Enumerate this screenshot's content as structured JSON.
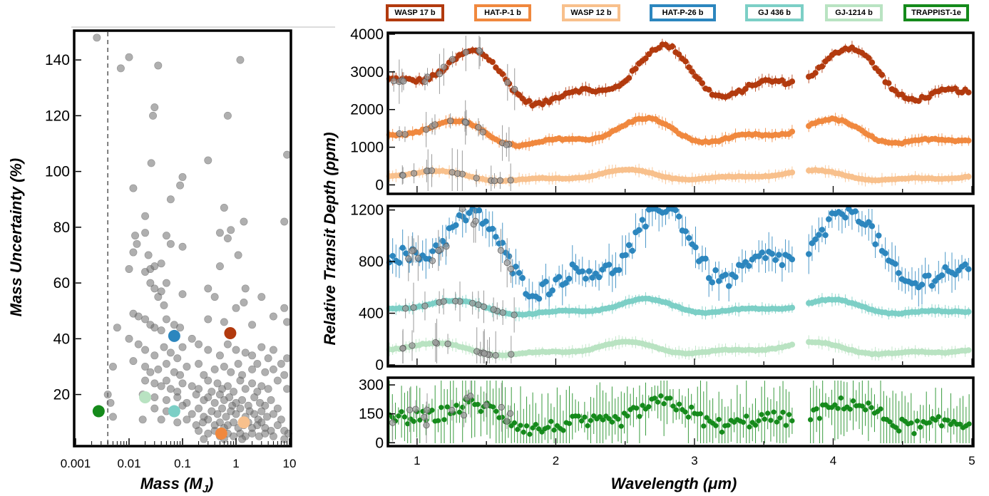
{
  "legend": [
    {
      "label": "WASP 17 b",
      "color": "#b23a0e"
    },
    {
      "label": "HAT-P-1 b",
      "color": "#f0883e"
    },
    {
      "label": "WASP 12 b",
      "color": "#f8c08c"
    },
    {
      "label": "HAT-P-26 b",
      "color": "#2c86be"
    },
    {
      "label": "GJ 436 b",
      "color": "#7ccfc6"
    },
    {
      "label": "GJ-1214 b",
      "color": "#b9e3c2"
    },
    {
      "label": "TRAPPIST-1e",
      "color": "#158a1b"
    }
  ],
  "chart_data": [
    {
      "type": "scatter",
      "xlabel": "Mass (M_J)",
      "ylabel": "Mass Uncertainty (%)",
      "xscale": "log",
      "xlim": [
        0.001,
        10
      ],
      "ylim": [
        2,
        150
      ],
      "xticks": [
        0.001,
        0.01,
        0.1,
        1,
        10
      ],
      "xtick_labels": [
        "0.001",
        "0.01",
        "0.1",
        "1",
        "10"
      ],
      "yticks": [
        20,
        40,
        60,
        80,
        100,
        120,
        140
      ],
      "ytick_labels": [
        "20",
        "40",
        "60",
        "80",
        "100",
        "120",
        "140"
      ],
      "reference_line_x": 0.004,
      "background_points": [
        [
          0.0025,
          148
        ],
        [
          0.007,
          137
        ],
        [
          0.01,
          141
        ],
        [
          0.035,
          138
        ],
        [
          0.028,
          120
        ],
        [
          0.03,
          123
        ],
        [
          0.026,
          103
        ],
        [
          0.7,
          120
        ],
        [
          1.2,
          140
        ],
        [
          0.3,
          104
        ],
        [
          9,
          106
        ],
        [
          0.012,
          94
        ],
        [
          0.1,
          98
        ],
        [
          0.09,
          95
        ],
        [
          0.06,
          90
        ],
        [
          0.02,
          84
        ],
        [
          0.6,
          87
        ],
        [
          1.4,
          82
        ],
        [
          0.013,
          77
        ],
        [
          0.014,
          74
        ],
        [
          0.02,
          78
        ],
        [
          0.05,
          77
        ],
        [
          0.5,
          78
        ],
        [
          0.8,
          79
        ],
        [
          8,
          82
        ],
        [
          0.012,
          71
        ],
        [
          0.023,
          70
        ],
        [
          0.06,
          74
        ],
        [
          0.1,
          73
        ],
        [
          0.7,
          76
        ],
        [
          0.01,
          65
        ],
        [
          0.02,
          64
        ],
        [
          0.025,
          65
        ],
        [
          0.03,
          66
        ],
        [
          0.04,
          67
        ],
        [
          0.05,
          60
        ],
        [
          0.5,
          66
        ],
        [
          1.1,
          70
        ],
        [
          0.025,
          60
        ],
        [
          0.03,
          58
        ],
        [
          0.04,
          57
        ],
        [
          0.035,
          55
        ],
        [
          0.045,
          52
        ],
        [
          0.1,
          56
        ],
        [
          0.3,
          58
        ],
        [
          0.4,
          55
        ],
        [
          1.5,
          58
        ],
        [
          3,
          55
        ],
        [
          0.012,
          49
        ],
        [
          0.015,
          48
        ],
        [
          0.02,
          47
        ],
        [
          0.025,
          45
        ],
        [
          0.03,
          44
        ],
        [
          0.04,
          43
        ],
        [
          0.05,
          47
        ],
        [
          0.07,
          45
        ],
        [
          0.09,
          44
        ],
        [
          0.3,
          47
        ],
        [
          0.6,
          46
        ],
        [
          1,
          51
        ],
        [
          1.4,
          53
        ],
        [
          2,
          45
        ],
        [
          5,
          48
        ],
        [
          8,
          51
        ],
        [
          9,
          46
        ],
        [
          0.006,
          44
        ],
        [
          0.01,
          40
        ],
        [
          0.015,
          38
        ],
        [
          0.02,
          36
        ],
        [
          0.03,
          34
        ],
        [
          0.045,
          37
        ],
        [
          0.06,
          35
        ],
        [
          0.08,
          33
        ],
        [
          0.1,
          37
        ],
        [
          0.15,
          40
        ],
        [
          0.2,
          38
        ],
        [
          0.3,
          36
        ],
        [
          0.5,
          34
        ],
        [
          0.7,
          38
        ],
        [
          1,
          36
        ],
        [
          1.5,
          35
        ],
        [
          2,
          34
        ],
        [
          3,
          37
        ],
        [
          4,
          33
        ],
        [
          5,
          36
        ],
        [
          7,
          31
        ],
        [
          9,
          33
        ],
        [
          0.005,
          30
        ],
        [
          0.012,
          32
        ],
        [
          0.02,
          30
        ],
        [
          0.025,
          28
        ],
        [
          0.035,
          29
        ],
        [
          0.05,
          31
        ],
        [
          0.07,
          28
        ],
        [
          0.09,
          27
        ],
        [
          0.12,
          30
        ],
        [
          0.2,
          31
        ],
        [
          0.25,
          27
        ],
        [
          0.4,
          29
        ],
        [
          0.6,
          30
        ],
        [
          0.8,
          28
        ],
        [
          1.1,
          31
        ],
        [
          1.3,
          27
        ],
        [
          2,
          29
        ],
        [
          2.5,
          31
        ],
        [
          3.5,
          28
        ],
        [
          5,
          29
        ],
        [
          8,
          27
        ],
        [
          0.02,
          25
        ],
        [
          0.03,
          24
        ],
        [
          0.04,
          23
        ],
        [
          0.05,
          25
        ],
        [
          0.06,
          22
        ],
        [
          0.08,
          21
        ],
        [
          0.1,
          24
        ],
        [
          0.15,
          23
        ],
        [
          0.2,
          22
        ],
        [
          0.3,
          25
        ],
        [
          0.35,
          21
        ],
        [
          0.45,
          24
        ],
        [
          0.55,
          22
        ],
        [
          0.7,
          23
        ],
        [
          0.9,
          21
        ],
        [
          1.2,
          25
        ],
        [
          1.5,
          22
        ],
        [
          2,
          24
        ],
        [
          2.5,
          21
        ],
        [
          3,
          23
        ],
        [
          4,
          22
        ],
        [
          6,
          25
        ],
        [
          9,
          22
        ],
        [
          0.004,
          20
        ],
        [
          0.018,
          20
        ],
        [
          0.03,
          19
        ],
        [
          0.05,
          18
        ],
        [
          0.08,
          19
        ],
        [
          0.12,
          17
        ],
        [
          0.18,
          20
        ],
        [
          0.25,
          18
        ],
        [
          0.3,
          19
        ],
        [
          0.4,
          17
        ],
        [
          0.5,
          20
        ],
        [
          0.6,
          18
        ],
        [
          0.75,
          19
        ],
        [
          0.85,
          16
        ],
        [
          1,
          17
        ],
        [
          1.3,
          18
        ],
        [
          1.7,
          16
        ],
        [
          2.2,
          19
        ],
        [
          2.8,
          17
        ],
        [
          3.5,
          16
        ],
        [
          4.5,
          18
        ],
        [
          6,
          15
        ],
        [
          0.0045,
          17
        ],
        [
          0.03,
          15
        ],
        [
          0.05,
          14
        ],
        [
          0.1,
          16
        ],
        [
          0.15,
          13
        ],
        [
          0.2,
          15
        ],
        [
          0.25,
          12
        ],
        [
          0.35,
          14
        ],
        [
          0.45,
          13
        ],
        [
          0.55,
          15
        ],
        [
          0.65,
          12
        ],
        [
          0.8,
          14
        ],
        [
          1,
          13
        ],
        [
          1.2,
          15
        ],
        [
          1.5,
          12
        ],
        [
          1.8,
          14
        ],
        [
          2.2,
          13
        ],
        [
          2.6,
          11
        ],
        [
          3,
          14
        ],
        [
          3.8,
          12
        ],
        [
          5,
          13
        ],
        [
          7,
          11
        ],
        [
          0.005,
          12
        ],
        [
          0.018,
          11
        ],
        [
          0.04,
          11
        ],
        [
          0.08,
          10
        ],
        [
          0.12,
          11
        ],
        [
          0.18,
          9
        ],
        [
          0.24,
          10
        ],
        [
          0.3,
          11
        ],
        [
          0.4,
          9
        ],
        [
          0.5,
          10
        ],
        [
          0.6,
          8
        ],
        [
          0.7,
          9
        ],
        [
          0.9,
          10
        ],
        [
          1.1,
          8
        ],
        [
          1.4,
          9
        ],
        [
          1.7,
          10
        ],
        [
          2,
          8
        ],
        [
          2.5,
          9
        ],
        [
          3,
          10
        ],
        [
          3.5,
          8
        ],
        [
          4.5,
          7
        ],
        [
          6,
          9
        ],
        [
          8,
          7
        ],
        [
          0.2,
          7
        ],
        [
          0.3,
          6
        ],
        [
          0.4,
          7
        ],
        [
          0.5,
          5
        ],
        [
          0.7,
          6
        ],
        [
          0.9,
          5
        ],
        [
          1.2,
          6
        ],
        [
          1.5,
          5
        ],
        [
          2,
          6
        ],
        [
          2.7,
          5
        ],
        [
          3.5,
          6
        ],
        [
          5,
          5
        ],
        [
          8,
          4
        ],
        [
          9.5,
          6
        ],
        [
          0.25,
          4
        ],
        [
          0.6,
          4
        ],
        [
          1.3,
          4
        ]
      ],
      "highlighted": [
        {
          "name": "WASP 17 b",
          "mass": 0.78,
          "uncertainty": 42
        },
        {
          "name": "HAT-P-26 b",
          "mass": 0.07,
          "uncertainty": 41
        },
        {
          "name": "GJ-1214 b",
          "mass": 0.02,
          "uncertainty": 19
        },
        {
          "name": "GJ 436 b",
          "mass": 0.07,
          "uncertainty": 14
        },
        {
          "name": "TRAPPIST-1e",
          "mass": 0.0027,
          "uncertainty": 14
        },
        {
          "name": "HAT-P-1 b",
          "mass": 0.53,
          "uncertainty": 6
        },
        {
          "name": "WASP 12 b",
          "mass": 1.4,
          "uncertainty": 10
        }
      ]
    },
    {
      "type": "scatter",
      "ylabel": "Relative Transit Depth (ppm)",
      "xlabel": "Wavelength (μm)",
      "xlim": [
        0.8,
        5
      ],
      "xticks": [
        1,
        2,
        3,
        4,
        5
      ],
      "xtick_labels": [
        "1",
        "2",
        "3",
        "4",
        "5"
      ],
      "panels": [
        {
          "ylim": [
            -200,
            4000
          ],
          "yticks": [
            0,
            1000,
            2000,
            3000,
            4000
          ],
          "ytick_labels": [
            "0",
            "1000",
            "2000",
            "3000",
            "4000"
          ],
          "series": [
            {
              "name": "WASP 17 b",
              "baseline": 2800,
              "amplitude": 900
            },
            {
              "name": "HAT-P-1 b",
              "baseline": 1350,
              "amplitude": 420
            },
            {
              "name": "WASP 12 b",
              "baseline": 230,
              "amplitude": 170
            }
          ]
        },
        {
          "ylim": [
            0,
            1220
          ],
          "yticks": [
            0,
            400,
            800,
            1200
          ],
          "ytick_labels": [
            "0",
            "400",
            "800",
            "1200"
          ],
          "series": [
            {
              "name": "HAT-P-26 b",
              "baseline": 850,
              "amplitude": 380
            },
            {
              "name": "GJ 436 b",
              "baseline": 440,
              "amplitude": 70
            },
            {
              "name": "GJ-1214 b",
              "baseline": 120,
              "amplitude": 60
            }
          ]
        },
        {
          "ylim": [
            -10,
            330
          ],
          "yticks": [
            0,
            150,
            300
          ],
          "ytick_labels": [
            "0",
            "150",
            "300"
          ],
          "series": [
            {
              "name": "TRAPPIST-1e",
              "baseline": 130,
              "amplitude": 80
            }
          ]
        }
      ],
      "gap_um": [
        3.72,
        3.82
      ],
      "grey_color": "#9a9a9a"
    }
  ]
}
